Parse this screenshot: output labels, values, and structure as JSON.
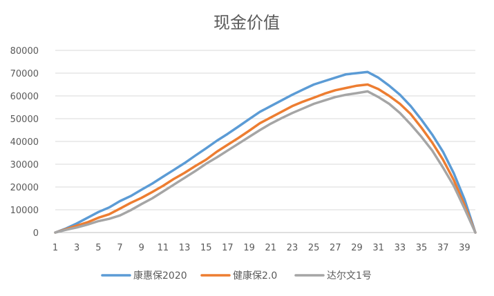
{
  "chart_data": {
    "type": "line",
    "title": "现金价值",
    "xlabel": "",
    "ylabel": "",
    "x": [
      1,
      2,
      3,
      4,
      5,
      6,
      7,
      8,
      9,
      10,
      11,
      12,
      13,
      14,
      15,
      16,
      17,
      18,
      19,
      20,
      21,
      22,
      23,
      24,
      25,
      26,
      27,
      28,
      29,
      30,
      31,
      32,
      33,
      34,
      35,
      36,
      37,
      38,
      39,
      40
    ],
    "x_tick_labels": [
      "1",
      "3",
      "5",
      "7",
      "9",
      "11",
      "13",
      "15",
      "17",
      "19",
      "21",
      "23",
      "25",
      "27",
      "29",
      "31",
      "33",
      "35",
      "37",
      "39"
    ],
    "ylim": [
      0,
      80000
    ],
    "y_ticks": [
      0,
      10000,
      20000,
      30000,
      40000,
      50000,
      60000,
      70000,
      80000
    ],
    "grid": true,
    "legend_position": "bottom",
    "series": [
      {
        "name": "康惠保2020",
        "color": "#5B9BD5",
        "values": [
          0,
          1800,
          4000,
          6500,
          9000,
          11000,
          13800,
          16000,
          18800,
          21500,
          24500,
          27500,
          30500,
          33800,
          37000,
          40300,
          43300,
          46500,
          49800,
          53000,
          55500,
          58000,
          60500,
          62800,
          65000,
          66500,
          68000,
          69500,
          70000,
          70500,
          68000,
          64500,
          60500,
          55500,
          49500,
          43000,
          35500,
          26000,
          14500,
          0
        ]
      },
      {
        "name": "健康保2.0",
        "color": "#ED7D31",
        "values": [
          0,
          1500,
          3000,
          4500,
          6500,
          8000,
          10500,
          13000,
          15200,
          17800,
          20500,
          23500,
          26200,
          29200,
          32000,
          35500,
          38500,
          41500,
          44700,
          48000,
          50500,
          53000,
          55500,
          57500,
          59200,
          61000,
          62500,
          63500,
          64500,
          65000,
          63000,
          60000,
          56500,
          52000,
          46000,
          39500,
          32000,
          23000,
          12000,
          0
        ]
      },
      {
        "name": "达尔文1号",
        "color": "#A5A5A5",
        "values": [
          0,
          1200,
          2200,
          3500,
          5000,
          6000,
          7500,
          9800,
          12500,
          15000,
          18000,
          21000,
          24000,
          27000,
          30200,
          33000,
          36000,
          39000,
          42000,
          45000,
          47800,
          50200,
          52500,
          54500,
          56500,
          58000,
          59500,
          60500,
          61200,
          62000,
          59500,
          56500,
          52500,
          47500,
          42000,
          36000,
          28500,
          20500,
          10500,
          0
        ]
      }
    ]
  }
}
